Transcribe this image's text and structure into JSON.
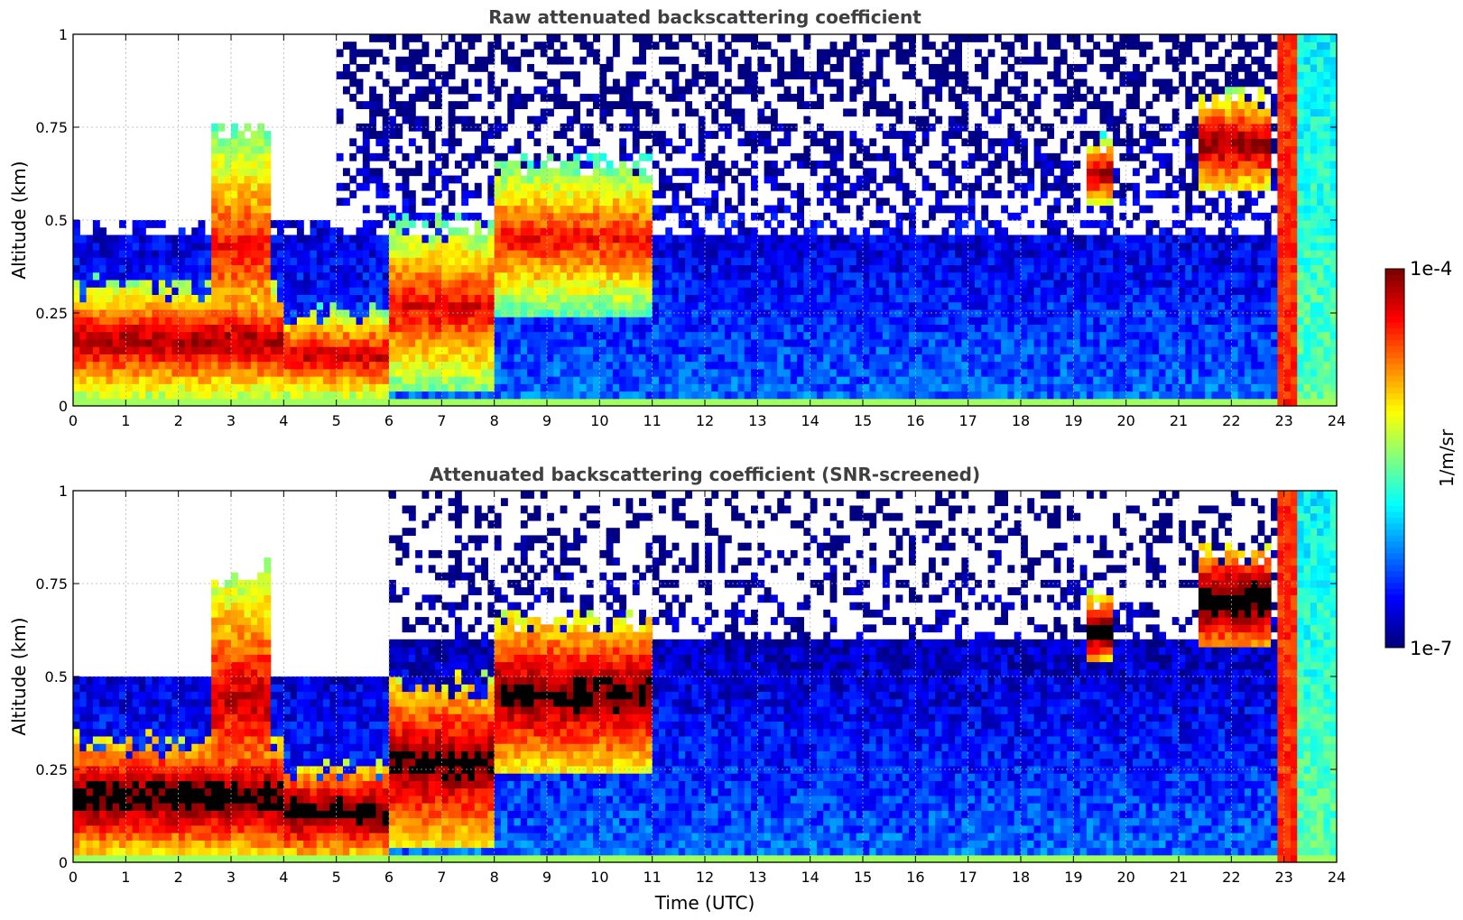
{
  "chart_data": [
    {
      "type": "heatmap",
      "title": "Raw attenuated backscattering coefficient",
      "xlabel": "",
      "ylabel": "Altitude (km)",
      "xlim": [
        0,
        24
      ],
      "ylim": [
        0,
        1
      ],
      "x_ticks": [
        "0",
        "1",
        "2",
        "3",
        "4",
        "5",
        "6",
        "7",
        "8",
        "9",
        "10",
        "11",
        "12",
        "13",
        "14",
        "15",
        "16",
        "17",
        "18",
        "19",
        "20",
        "21",
        "22",
        "23",
        "24"
      ],
      "y_ticks": [
        "0",
        "0.25",
        "0.5",
        "0.75",
        "1"
      ],
      "grid": true,
      "screened": false,
      "layers": [
        {
          "start": 0.0,
          "end": 4.0,
          "base": 0.03,
          "top": 0.32,
          "peak": -4.1
        },
        {
          "start": 2.6,
          "end": 3.8,
          "base": 0.1,
          "top": 0.75,
          "peak": -4.4
        },
        {
          "start": 4.0,
          "end": 6.0,
          "base": 0.02,
          "top": 0.25,
          "peak": -4.2
        },
        {
          "start": 6.0,
          "end": 8.0,
          "base": 0.05,
          "top": 0.48,
          "peak": -4.3
        },
        {
          "start": 8.0,
          "end": 11.0,
          "base": 0.25,
          "top": 0.65,
          "peak": -4.4
        },
        {
          "start": 19.2,
          "end": 19.8,
          "base": 0.55,
          "top": 0.7,
          "peak": -4.0
        },
        {
          "start": 21.4,
          "end": 22.8,
          "base": 0.58,
          "top": 0.83,
          "peak": -4.0
        }
      ]
    },
    {
      "type": "heatmap",
      "title": "Attenuated backscattering coefficient (SNR-screened)",
      "xlabel": "Time (UTC)",
      "ylabel": "Altitude (km)",
      "xlim": [
        0,
        24
      ],
      "ylim": [
        0,
        1
      ],
      "x_ticks": [
        "0",
        "1",
        "2",
        "3",
        "4",
        "5",
        "6",
        "7",
        "8",
        "9",
        "10",
        "11",
        "12",
        "13",
        "14",
        "15",
        "16",
        "17",
        "18",
        "19",
        "20",
        "21",
        "22",
        "23",
        "24"
      ],
      "y_ticks": [
        "0",
        "0.25",
        "0.5",
        "0.75",
        "1"
      ],
      "grid": true,
      "screened": true,
      "layers": [
        {
          "start": 0.0,
          "end": 4.0,
          "base": 0.03,
          "top": 0.32,
          "peak": -3.8
        },
        {
          "start": 2.6,
          "end": 3.8,
          "base": 0.1,
          "top": 0.78,
          "peak": -4.2
        },
        {
          "start": 4.0,
          "end": 6.0,
          "base": 0.02,
          "top": 0.25,
          "peak": -3.8
        },
        {
          "start": 6.0,
          "end": 8.0,
          "base": 0.05,
          "top": 0.48,
          "peak": -3.9
        },
        {
          "start": 8.0,
          "end": 11.0,
          "base": 0.25,
          "top": 0.65,
          "peak": -3.9
        },
        {
          "start": 19.2,
          "end": 19.8,
          "base": 0.55,
          "top": 0.7,
          "peak": -3.7
        },
        {
          "start": 21.4,
          "end": 22.8,
          "base": 0.58,
          "top": 0.83,
          "peak": -3.7
        }
      ]
    }
  ],
  "colorbar": {
    "label": "1/m/sr",
    "max_label": "1e-4",
    "min_label": "1e-7",
    "log_min": -7,
    "log_max": -4,
    "colormap": "jet"
  }
}
